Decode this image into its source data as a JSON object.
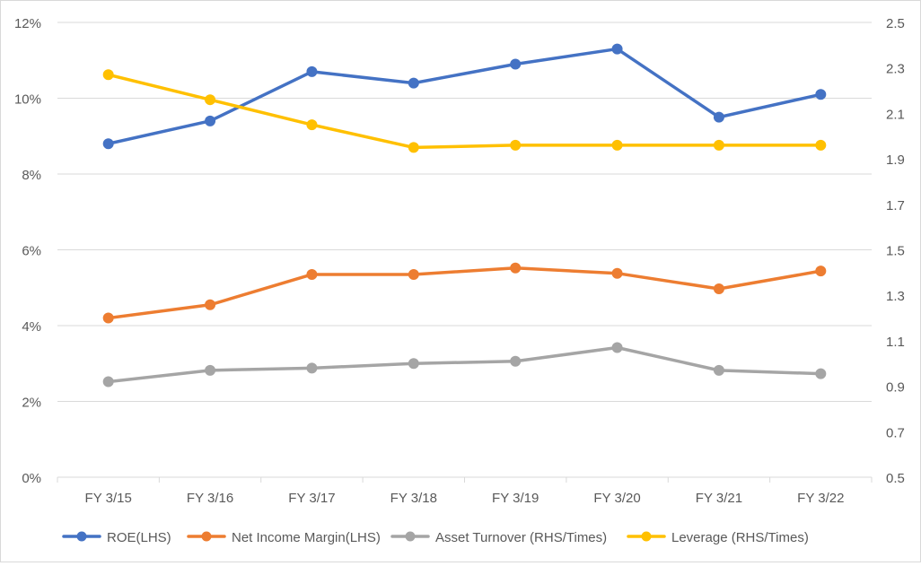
{
  "chart_data": {
    "type": "line",
    "categories": [
      "FY 3/15",
      "FY 3/16",
      "FY 3/17",
      "FY 3/18",
      "FY 3/19",
      "FY 3/20",
      "FY 3/21",
      "FY 3/22"
    ],
    "y_left": {
      "range": [
        0,
        12
      ],
      "ticks": [
        0,
        2,
        4,
        6,
        8,
        10,
        12
      ],
      "tick_labels": [
        "0%",
        "2%",
        "4%",
        "6%",
        "8%",
        "10%",
        "12%"
      ]
    },
    "y_right": {
      "range": [
        0.5,
        2.5
      ],
      "ticks": [
        0.5,
        0.7,
        0.9,
        1.1,
        1.3,
        1.5,
        1.7,
        1.9,
        2.1,
        2.3,
        2.5
      ],
      "tick_labels": [
        "0.5",
        "0.7",
        "0.9",
        "1.1",
        "1.3",
        "1.5",
        "1.7",
        "1.9",
        "2.1",
        "2.3",
        "2.5"
      ]
    },
    "grid": "horizontal",
    "legend_position": "bottom",
    "series": [
      {
        "name": "ROE(LHS)",
        "axis": "left",
        "color": "#4472C4",
        "values": [
          8.8,
          9.4,
          10.7,
          10.4,
          10.9,
          11.3,
          9.5,
          10.1
        ]
      },
      {
        "name": "Net Income Margin(LHS)",
        "axis": "left",
        "color": "#ED7D31",
        "values": [
          4.2,
          4.55,
          5.35,
          5.35,
          5.52,
          5.38,
          4.97,
          5.44
        ]
      },
      {
        "name": "Asset Turnover (RHS/Times)",
        "axis": "right",
        "color": "#A5A5A5",
        "values": [
          0.92,
          0.97,
          0.98,
          1.0,
          1.01,
          1.07,
          0.97,
          0.955
        ]
      },
      {
        "name": "Leverage (RHS/Times)",
        "axis": "right",
        "color": "#FFC000",
        "values": [
          2.27,
          2.16,
          2.05,
          1.95,
          1.96,
          1.96,
          1.96,
          1.96
        ]
      }
    ]
  }
}
